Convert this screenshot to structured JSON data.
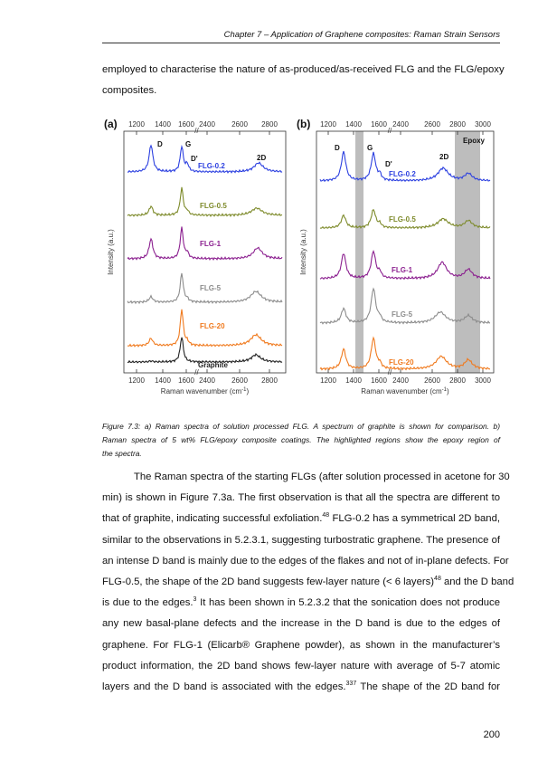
{
  "header": {
    "title": "Chapter 7 – Application of Graphene composites: Raman Strain Sensors"
  },
  "intro": {
    "lines": [
      "employed to characterise the nature of as-produced/as-received FLG and the FLG/epoxy",
      "composites."
    ]
  },
  "figure": {
    "panel_a": {
      "label": "(a)",
      "top_ticks": [
        "1200",
        "1400",
        "1600",
        "2400",
        "2600",
        "2800"
      ],
      "bottom_ticks": [
        "1200",
        "1400",
        "1600",
        "2400",
        "2600",
        "2800"
      ],
      "y_label": "Intensity (a.u.)",
      "x_label": {
        "text": "Raman wavenumber (cm",
        "sup": "-1",
        "end": ")"
      },
      "peak_labels": [
        "D",
        "G",
        "D'",
        "2D"
      ],
      "series_labels": [
        {
          "text": "FLG-0.2",
          "color": "#2b3fe0"
        },
        {
          "text": "FLG-0.5",
          "color": "#7d8a2a"
        },
        {
          "text": "FLG-1",
          "color": "#8b1f8f"
        },
        {
          "text": "FLG-5",
          "color": "#8c8c8c"
        },
        {
          "text": "FLG-20",
          "color": "#f07a1e"
        },
        {
          "text": "Graphite",
          "color": "#222222"
        }
      ]
    },
    "panel_b": {
      "label": "(b)",
      "top_ticks": [
        "1200",
        "1400",
        "1600",
        "2400",
        "2600",
        "2800",
        "3000"
      ],
      "bottom_ticks": [
        "1200",
        "1400",
        "1600",
        "2400",
        "2600",
        "2800",
        "3000"
      ],
      "y_label": "Intensity (a.u.)",
      "x_label": {
        "text": "Raman wavenumber (cm",
        "sup": "-1",
        "end": ")"
      },
      "peak_labels": [
        "D",
        "G",
        "D'",
        "2D"
      ],
      "region_label": "Epoxy",
      "series_labels": [
        {
          "text": "FLG-0.2",
          "color": "#2b3fe0"
        },
        {
          "text": "FLG-0.5",
          "color": "#7d8a2a"
        },
        {
          "text": "FLG-1",
          "color": "#8b1f8f"
        },
        {
          "text": "FLG-5",
          "color": "#8c8c8c"
        },
        {
          "text": "FLG-20",
          "color": "#f07a1e"
        }
      ]
    },
    "caption": [
      "Figure 7.3: a) Raman spectra of solution processed FLG. A spectrum of graphite is shown for comparison. b)",
      "Raman spectra of 5 wt% FLG/epoxy composite coatings. The highlighted regions show the epoxy region of",
      "the spectra."
    ]
  },
  "body": {
    "lines": [
      [
        {
          "text": "The Raman spectra of the starting FLGs (after solution processed in acetone for 30"
        }
      ],
      [
        {
          "text": "min) is shown in Figure 7.3a. The first observation is that all the spectra are different to"
        }
      ],
      [
        {
          "text": "that of graphite, indicating successful exfoliation."
        },
        {
          "sup": "48"
        },
        {
          "text": " FLG-0.2 has a symmetrical 2D band,"
        }
      ],
      [
        {
          "text": "similar to the observations in 5.2.3.1, suggesting turbostratic graphene. The presence of"
        }
      ],
      [
        {
          "text": "an intense D band is mainly due to the edges of the flakes and not of in-plane defects. For"
        }
      ],
      [
        {
          "text": "FLG-0.5, the shape of the 2D band suggests few-layer nature (< 6 layers)"
        },
        {
          "sup": "48"
        },
        {
          "text": " and the D band"
        }
      ],
      [
        {
          "text": "is due to the edges."
        },
        {
          "sup": "3"
        },
        {
          "text": " It has been shown in 5.2.3.2 that the sonication does not produce"
        }
      ],
      [
        {
          "text": "any new basal-plane defects and the increase in the D band is due to the edges of"
        }
      ],
      [
        {
          "text": "graphene. For FLG-1 (Elicarb® Graphene powder), as shown in the manufacturer’s"
        }
      ],
      [
        {
          "text": "product information, the 2D band shows few-layer nature with average of 5-7 atomic"
        }
      ],
      [
        {
          "text": "layers and the D band is associated with the edges."
        },
        {
          "sup": "337"
        },
        {
          "text": " The shape of the 2D band for"
        }
      ]
    ]
  },
  "footer": {
    "page_number": "200"
  }
}
